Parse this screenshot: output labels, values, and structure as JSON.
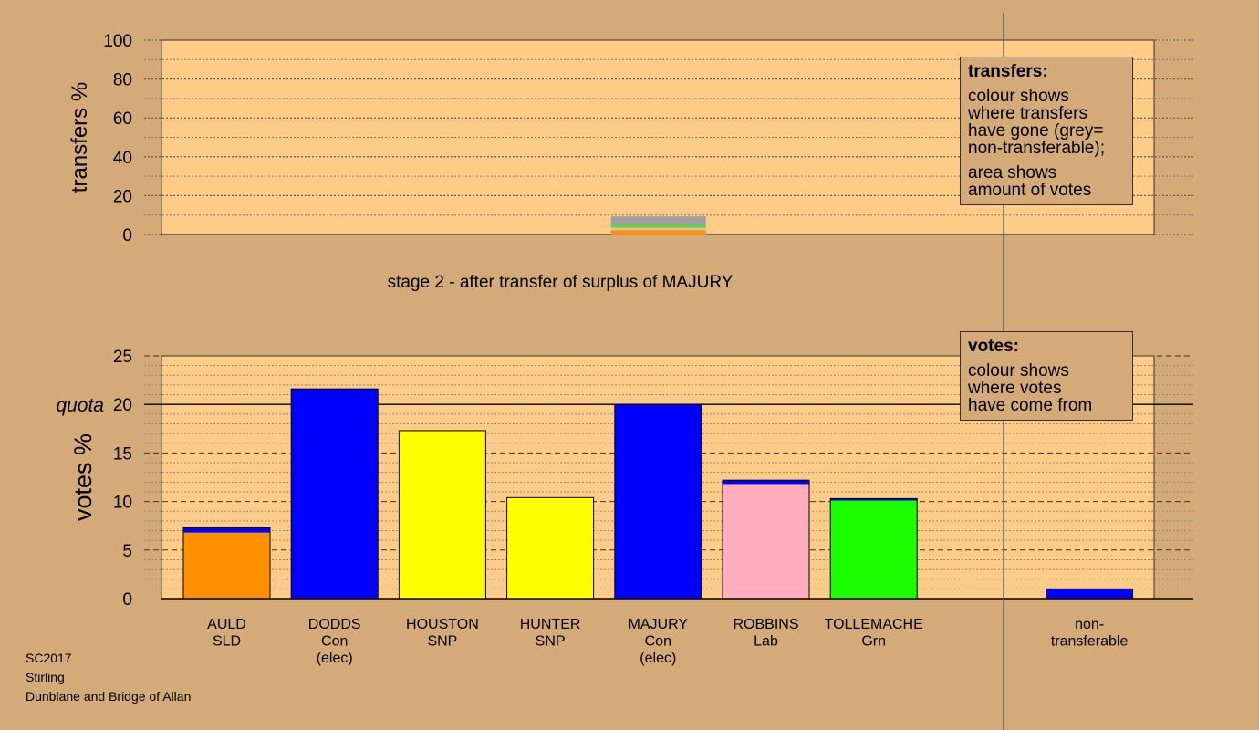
{
  "chart_data": [
    {
      "type": "bar",
      "panel": "transfers",
      "ylabel": "transfers %",
      "ylim": [
        0,
        100
      ],
      "yticks": [
        0,
        20,
        40,
        60,
        80,
        100
      ],
      "grid": true,
      "caption": "stage 2 - after transfer of surplus of MAJURY",
      "categories": [
        "AULD SLD",
        "DODDS Con (elec)",
        "HOUSTON SNP",
        "HUNTER SNP",
        "MAJURY Con (elec)",
        "ROBBINS Lab",
        "TOLLEMACHE Grn"
      ],
      "segments": [
        {
          "category": "MAJURY Con (elec)",
          "color": "#ff9000",
          "value": 2.2
        },
        {
          "category": "MAJURY Con (elec)",
          "color": "#ffaec0",
          "value": 1.3
        },
        {
          "category": "MAJURY Con (elec)",
          "color": "#1cff00",
          "value": 1.0
        },
        {
          "category": "MAJURY Con (elec)",
          "color": "#a0a0a0",
          "value": 4.8
        }
      ],
      "legend": {
        "title": "transfers:",
        "lines": [
          "colour shows",
          "where transfers",
          "have gone (grey=",
          "non-transferable);",
          "area shows",
          "amount of votes"
        ]
      }
    },
    {
      "type": "bar",
      "panel": "votes",
      "ylabel": "votes %",
      "ylim": [
        0,
        25
      ],
      "yticks": [
        0,
        5,
        10,
        15,
        20,
        25
      ],
      "quota": 20,
      "quota_label": "quota",
      "grid": true,
      "categories": [
        {
          "name": "AULD",
          "party": "SLD",
          "extra": ""
        },
        {
          "name": "DODDS",
          "party": "Con",
          "extra": "(elec)"
        },
        {
          "name": "HOUSTON",
          "party": "SNP",
          "extra": ""
        },
        {
          "name": "HUNTER",
          "party": "SNP",
          "extra": ""
        },
        {
          "name": "MAJURY",
          "party": "Con",
          "extra": "(elec)"
        },
        {
          "name": "ROBBINS",
          "party": "Lab",
          "extra": ""
        },
        {
          "name": "TOLLEMACHE",
          "party": "Grn",
          "extra": ""
        },
        {
          "name": "",
          "party": "",
          "extra": ""
        },
        {
          "name": "non-",
          "party": "transferable",
          "extra": ""
        }
      ],
      "stacks": [
        [
          {
            "color": "#ff9000",
            "value": 6.8
          },
          {
            "color": "#0000ff",
            "value": 0.5
          }
        ],
        [
          {
            "color": "#0000ff",
            "value": 21.6
          }
        ],
        [
          {
            "color": "#ffff00",
            "value": 17.3
          }
        ],
        [
          {
            "color": "#ffff00",
            "value": 10.4
          }
        ],
        [
          {
            "color": "#0000ff",
            "value": 20.0
          }
        ],
        [
          {
            "color": "#ffaec0",
            "value": 11.8
          },
          {
            "color": "#0000ff",
            "value": 0.4
          }
        ],
        [
          {
            "color": "#1cff00",
            "value": 10.1
          },
          {
            "color": "#0000ff",
            "value": 0.2
          }
        ],
        [],
        [
          {
            "color": "#0000ff",
            "value": 1.0
          }
        ]
      ],
      "legend": {
        "title": "votes:",
        "lines": [
          "colour shows",
          "where votes",
          "have come from"
        ]
      }
    }
  ],
  "footer": {
    "line1": "SC2017",
    "line2": "Stirling",
    "line3": "Dunblane and Bridge of Allan"
  },
  "colors": {
    "background": "#d4aa78",
    "plot_area": "#ffcc88",
    "con": "#0000ff",
    "snp": "#ffff00",
    "sld": "#ff9000",
    "lab": "#ffaec0",
    "grn": "#1cff00",
    "non_transferable": "#a0a0a0"
  }
}
